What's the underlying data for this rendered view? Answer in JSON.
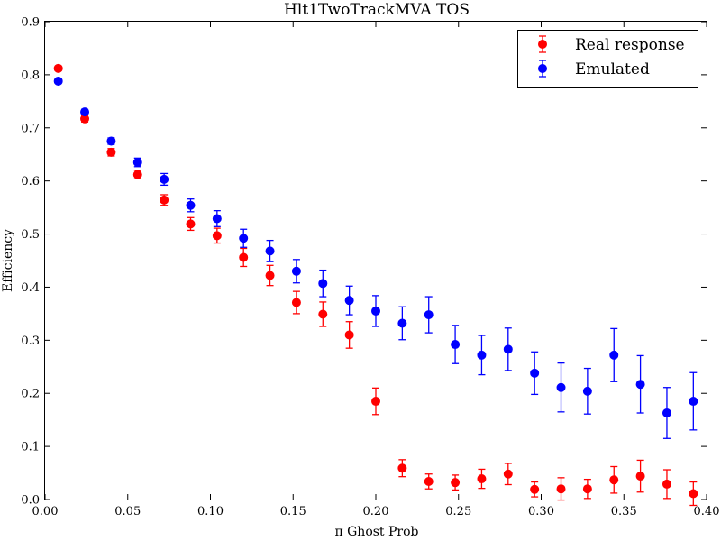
{
  "chart_data": {
    "type": "scatter",
    "title": "Hlt1TwoTrackMVA TOS",
    "xlabel": "π Ghost Prob",
    "ylabel": "Efficiency",
    "xlim": [
      0.0,
      0.4
    ],
    "ylim": [
      0.0,
      0.9
    ],
    "xticks": [
      "0.00",
      "0.05",
      "0.10",
      "0.15",
      "0.20",
      "0.25",
      "0.30",
      "0.35",
      "0.40"
    ],
    "yticks": [
      "0.0",
      "0.1",
      "0.2",
      "0.3",
      "0.4",
      "0.5",
      "0.6",
      "0.7",
      "0.8",
      "0.9"
    ],
    "grid": false,
    "legend_position": "top-right",
    "error_bars": true,
    "series": [
      {
        "name": "Real response",
        "color": "#ff0000",
        "x": [
          0.008,
          0.024,
          0.04,
          0.056,
          0.072,
          0.088,
          0.104,
          0.12,
          0.136,
          0.152,
          0.168,
          0.184,
          0.2,
          0.216,
          0.232,
          0.248,
          0.264,
          0.28,
          0.296,
          0.312,
          0.328,
          0.344,
          0.36,
          0.376,
          0.392
        ],
        "y": [
          0.812,
          0.717,
          0.654,
          0.612,
          0.564,
          0.519,
          0.497,
          0.456,
          0.422,
          0.371,
          0.349,
          0.31,
          0.185,
          0.059,
          0.034,
          0.032,
          0.039,
          0.048,
          0.019,
          0.02,
          0.02,
          0.037,
          0.044,
          0.029,
          0.011
        ],
        "yerr": [
          0.004,
          0.006,
          0.007,
          0.008,
          0.01,
          0.012,
          0.014,
          0.017,
          0.019,
          0.021,
          0.023,
          0.025,
          0.025,
          0.016,
          0.014,
          0.014,
          0.018,
          0.02,
          0.014,
          0.021,
          0.018,
          0.025,
          0.03,
          0.027,
          0.022
        ]
      },
      {
        "name": "Emulated",
        "color": "#0000ff",
        "x": [
          0.008,
          0.024,
          0.04,
          0.056,
          0.072,
          0.088,
          0.104,
          0.12,
          0.136,
          0.152,
          0.168,
          0.184,
          0.2,
          0.216,
          0.232,
          0.248,
          0.264,
          0.28,
          0.296,
          0.312,
          0.328,
          0.344,
          0.36,
          0.376,
          0.392
        ],
        "y": [
          0.788,
          0.73,
          0.675,
          0.635,
          0.603,
          0.554,
          0.529,
          0.492,
          0.468,
          0.43,
          0.407,
          0.375,
          0.355,
          0.332,
          0.348,
          0.292,
          0.272,
          0.283,
          0.238,
          0.211,
          0.204,
          0.272,
          0.217,
          0.163,
          0.185
        ],
        "yerr": [
          0.004,
          0.005,
          0.006,
          0.008,
          0.011,
          0.012,
          0.015,
          0.017,
          0.02,
          0.022,
          0.025,
          0.027,
          0.029,
          0.031,
          0.034,
          0.036,
          0.037,
          0.04,
          0.04,
          0.046,
          0.043,
          0.05,
          0.054,
          0.048,
          0.054
        ]
      }
    ]
  }
}
